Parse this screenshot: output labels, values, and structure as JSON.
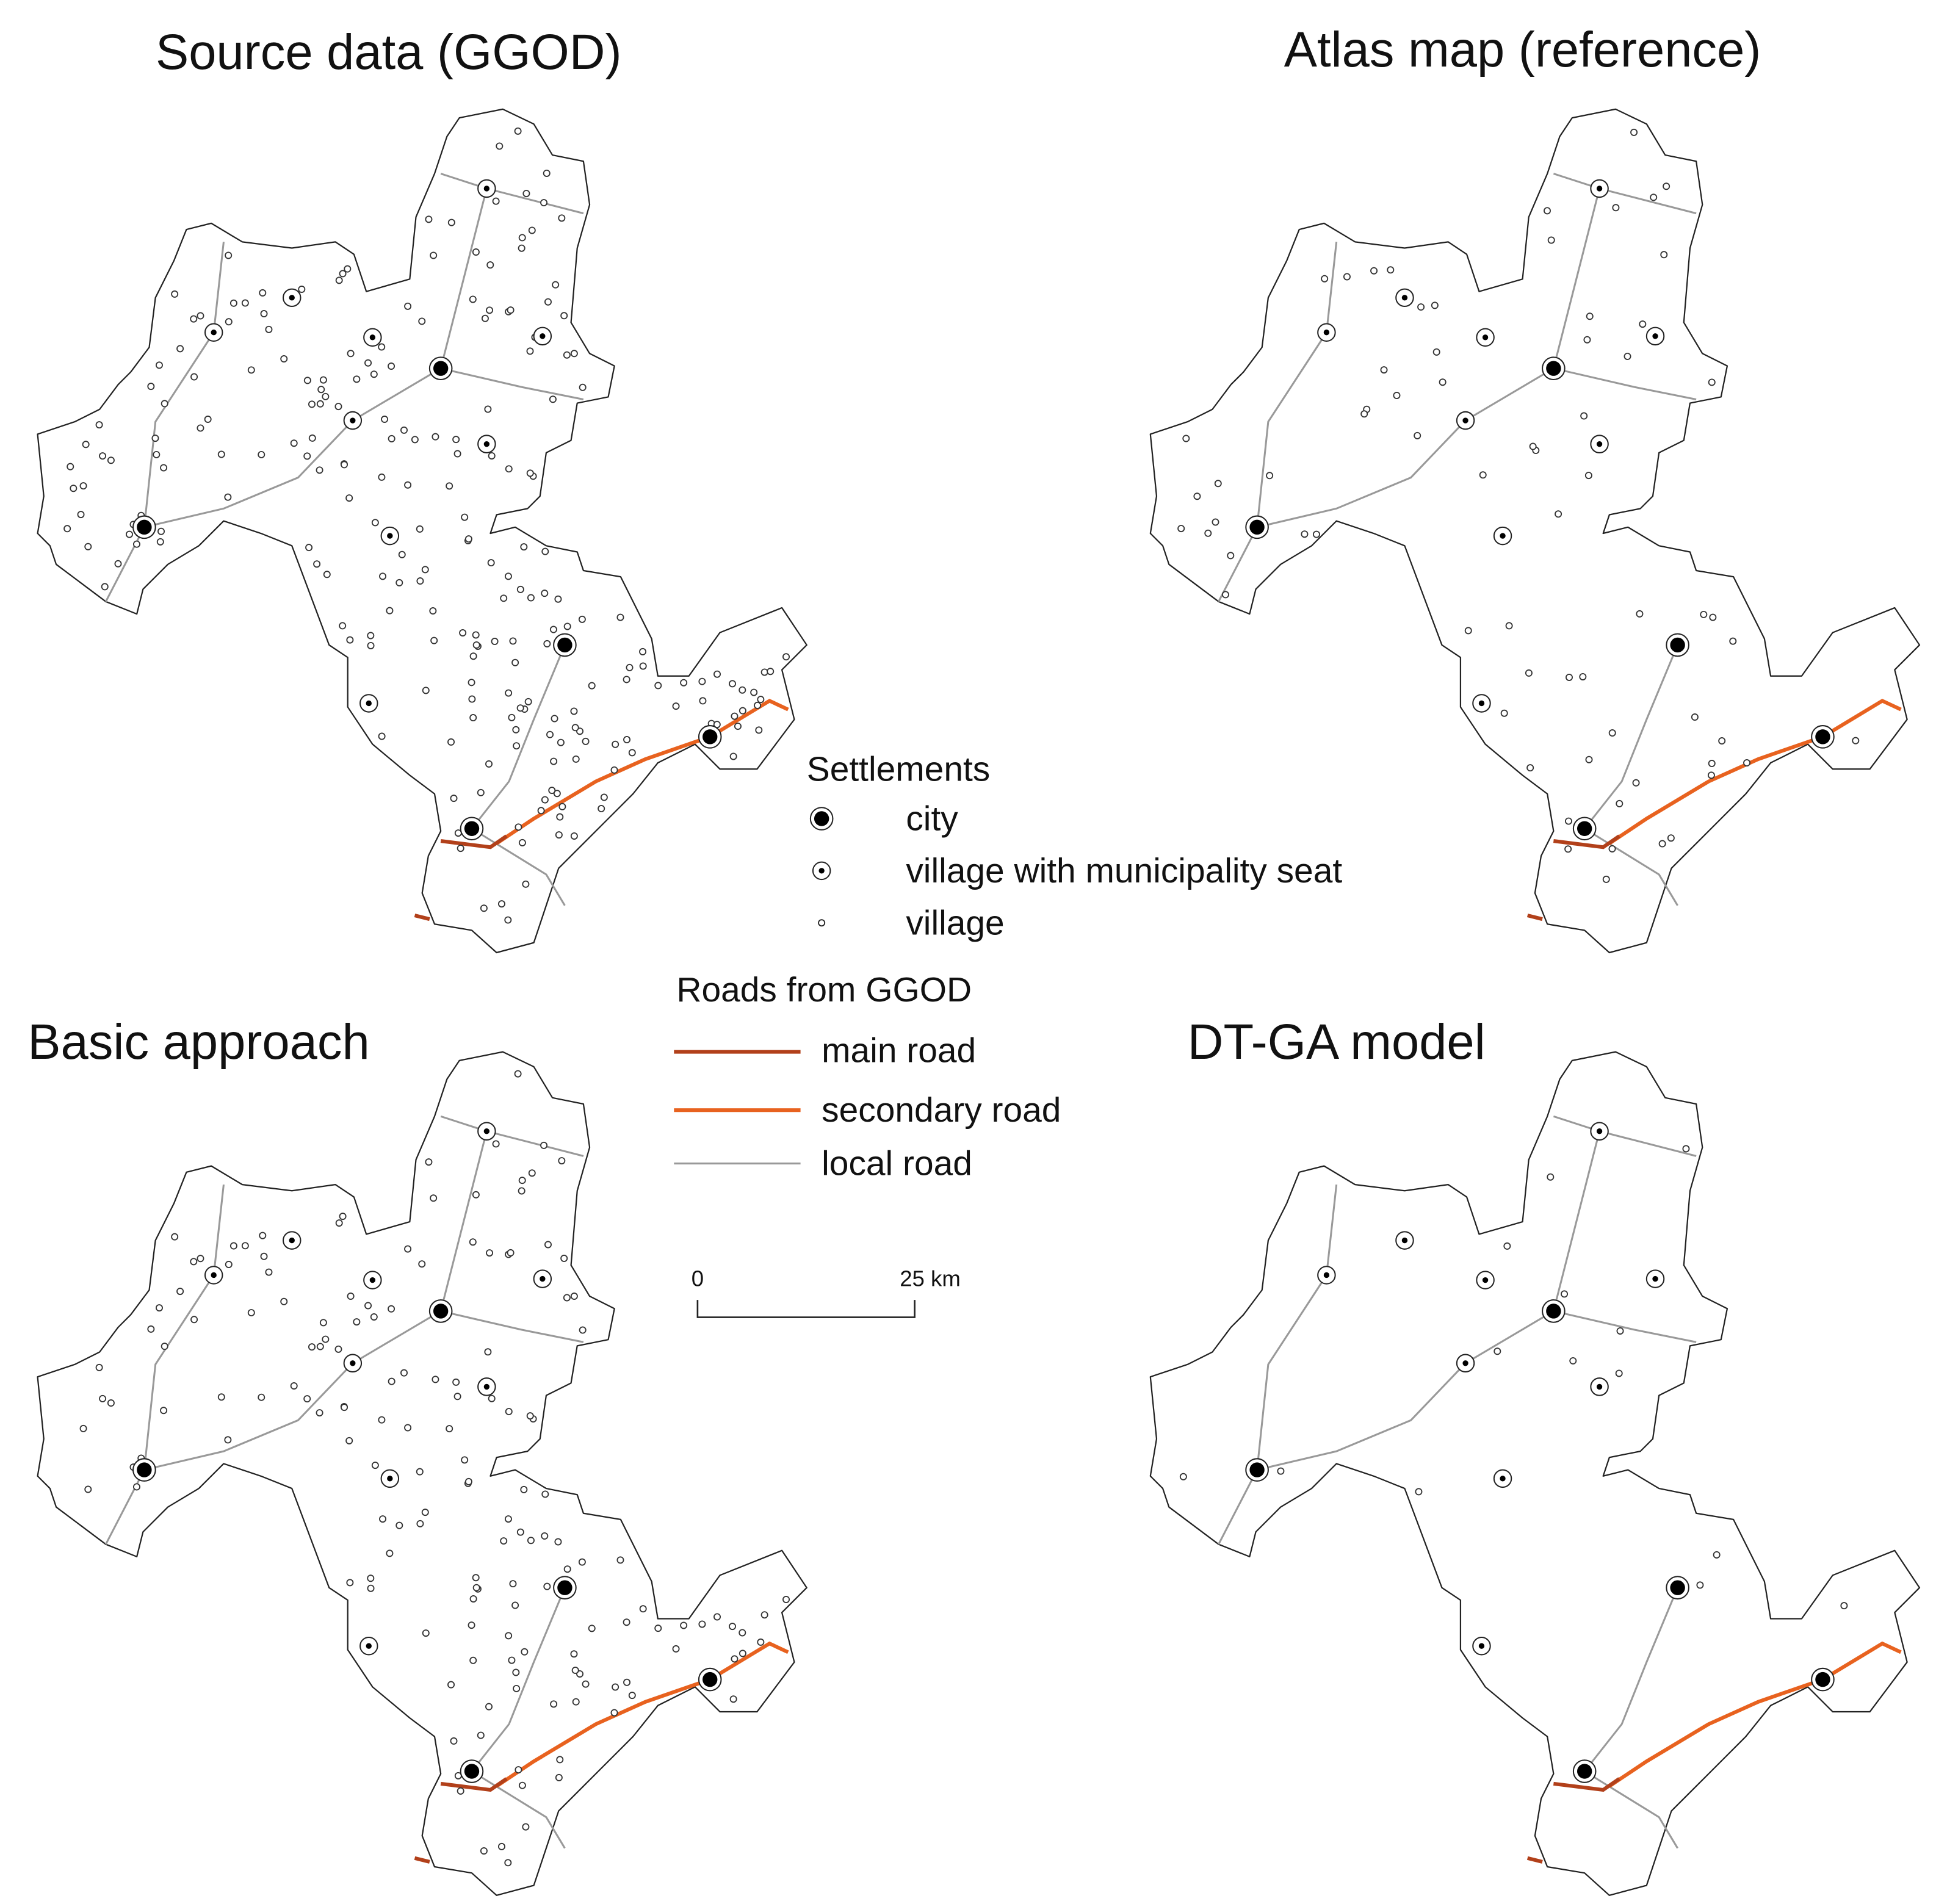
{
  "maps": [
    {
      "title": "Source data (GGOD)"
    },
    {
      "title": "Atlas map (reference)"
    },
    {
      "title": "Basic approach"
    },
    {
      "title": "DT-GA model"
    }
  ],
  "legend": {
    "settlements": {
      "title": "Settlements",
      "items": [
        "city",
        "village with municipality seat",
        "village"
      ]
    },
    "roads": {
      "title": "Roads from GGOD",
      "items": [
        "main road",
        "secondary road",
        "local road"
      ]
    }
  },
  "scale_bar": {
    "labels": [
      "0",
      "25 km"
    ]
  }
}
